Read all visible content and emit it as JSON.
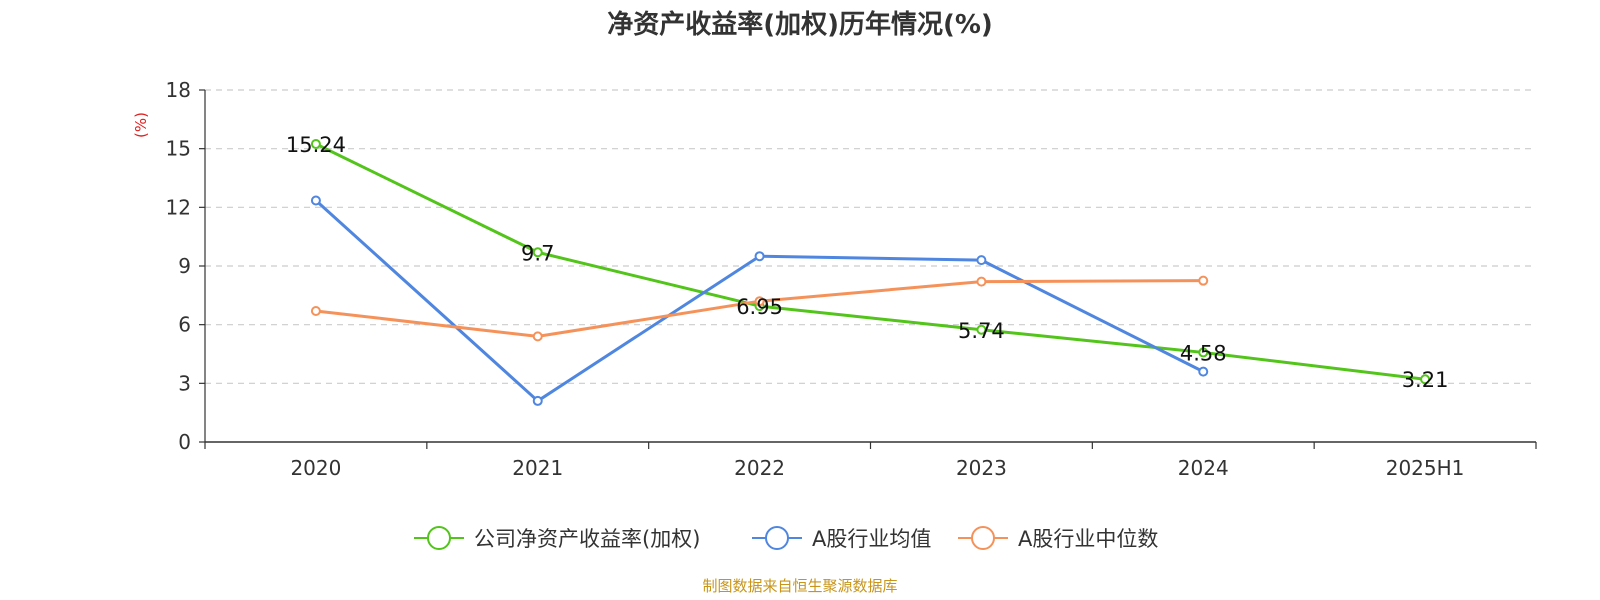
{
  "chart_data": {
    "type": "line",
    "title": "净资产收益率(加权)历年情况(%)",
    "ylabel": "(%)",
    "ylim": [
      0,
      18
    ],
    "yticks": [
      0,
      3,
      6,
      9,
      12,
      15,
      18
    ],
    "grid": true,
    "legend_position": "bottom",
    "categories": [
      "2020",
      "2021",
      "2022",
      "2023",
      "2024",
      "2025H1"
    ],
    "series": [
      {
        "name": "公司净资产收益率(加权)",
        "color": "#52c41a",
        "values": [
          15.24,
          9.7,
          6.95,
          5.74,
          4.58,
          3.21
        ],
        "labels": [
          "15.24",
          "9.7",
          "6.95",
          "5.74",
          "4.58",
          "3.21"
        ],
        "show_labels": true
      },
      {
        "name": "A股行业均值",
        "color": "#4f86e0",
        "values": [
          12.35,
          2.1,
          9.5,
          9.3,
          3.6,
          null
        ],
        "show_labels": false
      },
      {
        "name": "A股行业中位数",
        "color": "#f5925a",
        "values": [
          6.7,
          5.4,
          7.2,
          8.2,
          8.25,
          null
        ],
        "show_labels": false
      }
    ]
  },
  "source": {
    "text": "制图数据来自恒生聚源数据库",
    "color": "#c8951a"
  },
  "axis_label_color": "#e02020"
}
